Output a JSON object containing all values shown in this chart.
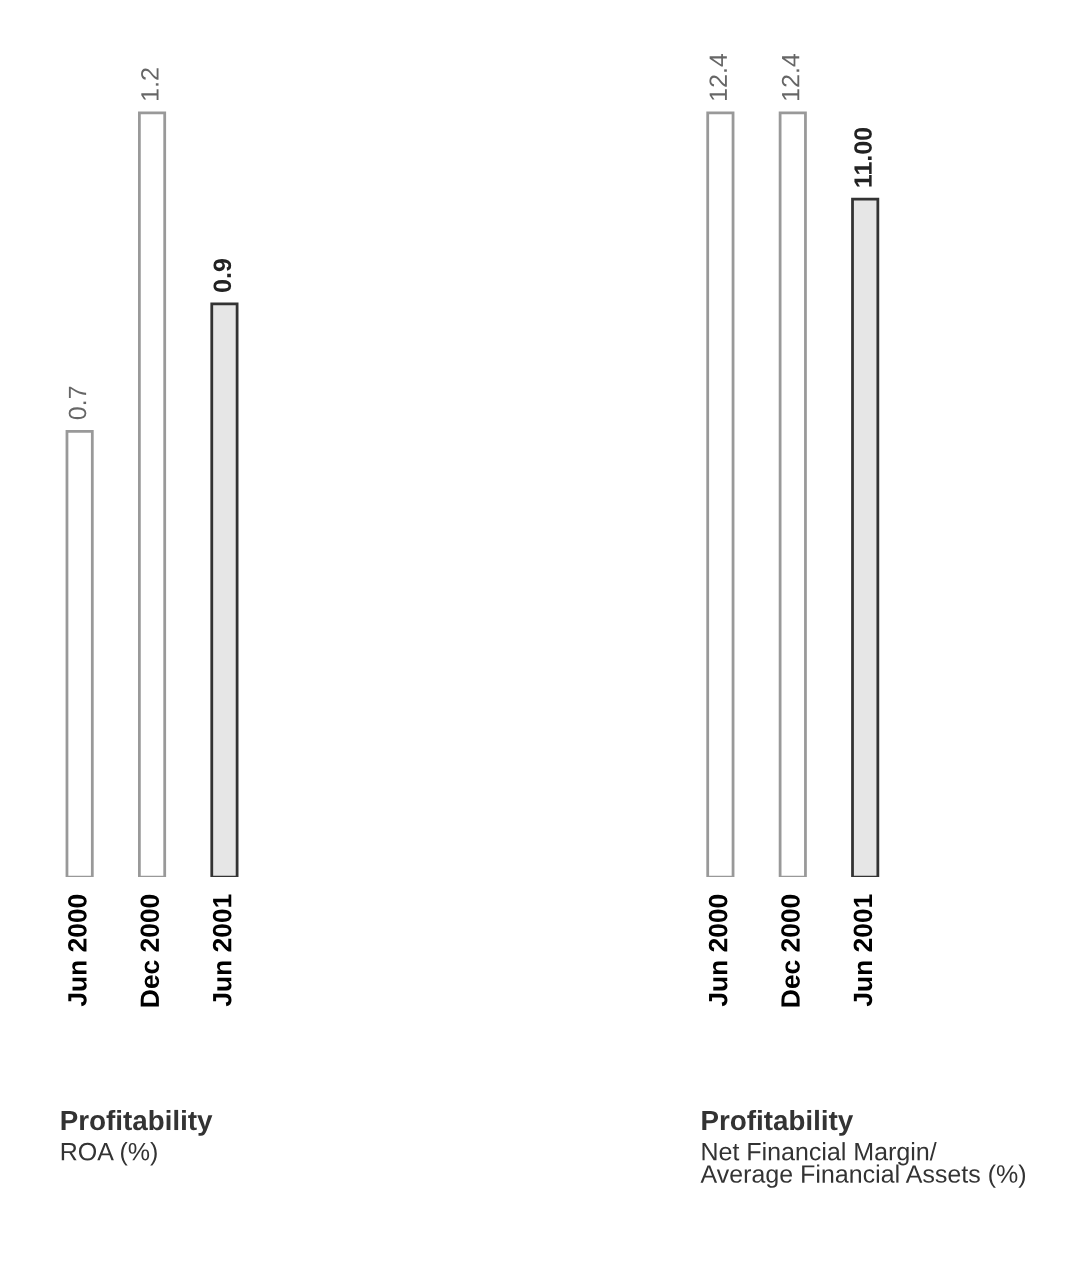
{
  "chart_data": [
    {
      "type": "bar",
      "title": "Profitability",
      "subtitle": "ROA (%)",
      "categories": [
        "Jun 2000",
        "Dec 2000",
        "Jun 2001"
      ],
      "values": [
        0.7,
        1.2,
        0.9
      ],
      "colors": [
        "#ffffff",
        "#ffffff",
        "#e6e6e6"
      ],
      "value_labels": [
        "0.7",
        "1.2",
        "0.9"
      ]
    },
    {
      "type": "bar",
      "title": "Profitability",
      "subtitle": "Net Financial Margin/\nAverage Financial Assets (%)",
      "categories": [
        "Jun 2000",
        "Dec 2000",
        "Jun 2001"
      ],
      "values": [
        12.4,
        12.4,
        11.0
      ],
      "colors": [
        "#ffffff",
        "#ffffff",
        "#e6e6e6"
      ],
      "value_labels": [
        "12.4",
        "12.4",
        "11.00"
      ]
    }
  ]
}
